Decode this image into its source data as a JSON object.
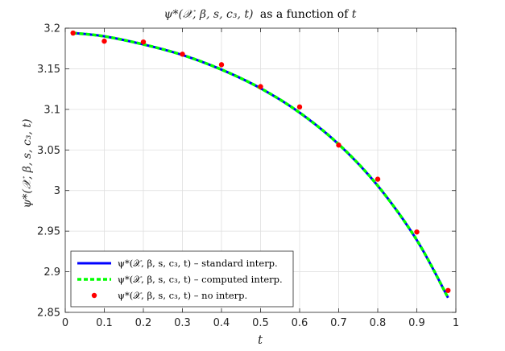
{
  "chart_data": {
    "type": "line",
    "title": "ψ*(𝒳, β, s, c₃, t) as a function of t",
    "xlabel": "t",
    "ylabel": "ψ*(𝒳, β, s, c₃, t)",
    "xlim": [
      0,
      1
    ],
    "ylim": [
      2.85,
      3.2
    ],
    "x_ticks": [
      "0",
      "0.1",
      "0.2",
      "0.3",
      "0.4",
      "0.5",
      "0.6",
      "0.7",
      "0.8",
      "0.9",
      "1"
    ],
    "x_tick_values": [
      0,
      0.1,
      0.2,
      0.3,
      0.4,
      0.5,
      0.6,
      0.7,
      0.8,
      0.9,
      1
    ],
    "y_ticks": [
      "2.85",
      "2.9",
      "2.95",
      "3",
      "3.05",
      "3.1",
      "3.15",
      "3.2"
    ],
    "y_tick_values": [
      2.85,
      2.9,
      2.95,
      3,
      3.05,
      3.1,
      3.15,
      3.2
    ],
    "grid": true,
    "legend_position": "bottom-left",
    "series": [
      {
        "name": "ψ*(𝒳, β, s, c₃, t) – standard interp.",
        "style": "solid",
        "color": "#0000ff",
        "x": [
          0.02,
          0.1,
          0.2,
          0.3,
          0.4,
          0.5,
          0.6,
          0.7,
          0.8,
          0.9,
          0.98
        ],
        "values": [
          3.194,
          3.19,
          3.18,
          3.167,
          3.149,
          3.126,
          3.096,
          3.057,
          3.006,
          2.939,
          2.868
        ]
      },
      {
        "name": "ψ*(𝒳, β, s, c₃, t) – computed interp.",
        "style": "dashed",
        "color": "#00ff00",
        "x": [
          0.02,
          0.1,
          0.2,
          0.3,
          0.4,
          0.5,
          0.6,
          0.7,
          0.8,
          0.9,
          0.98
        ],
        "values": [
          3.194,
          3.19,
          3.18,
          3.167,
          3.149,
          3.126,
          3.096,
          3.057,
          3.006,
          2.939,
          2.868
        ]
      },
      {
        "name": "ψ*(𝒳, β, s, c₃, t) – no interp.",
        "style": "markers",
        "color": "#ff0000",
        "x": [
          0.02,
          0.1,
          0.2,
          0.3,
          0.4,
          0.5,
          0.6,
          0.7,
          0.8,
          0.9,
          0.98
        ],
        "values": [
          3.194,
          3.184,
          3.183,
          3.168,
          3.155,
          3.128,
          3.103,
          3.056,
          3.014,
          2.949,
          2.877
        ]
      }
    ]
  }
}
